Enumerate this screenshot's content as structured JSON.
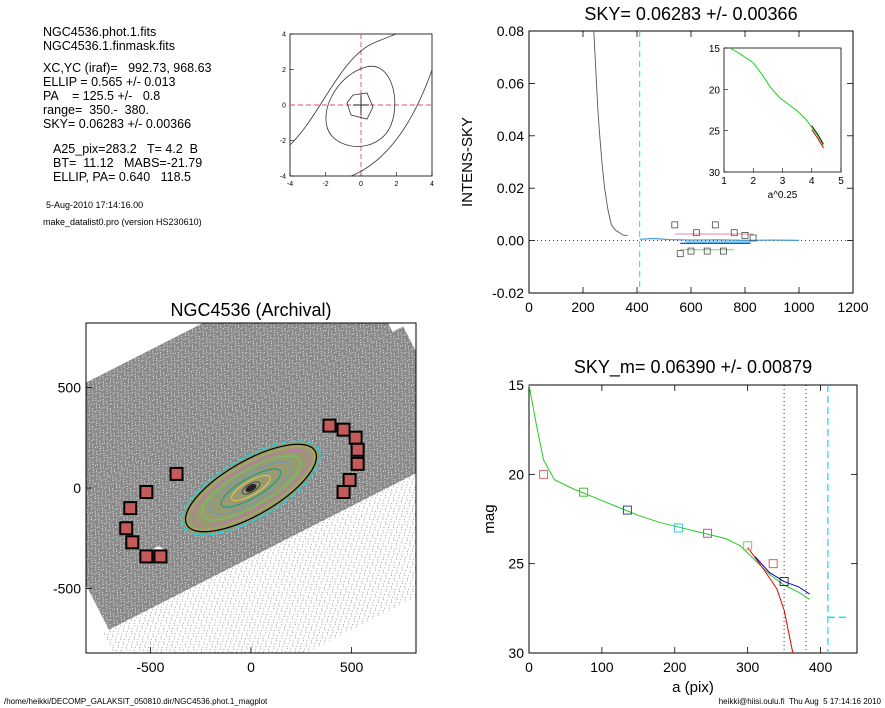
{
  "info": {
    "file_phot": "NGC4536.phot.1.fits",
    "file_mask": "NGC4536.1.finmask.fits",
    "xc_yc": "XC,YC (iraf)=   992.73, 968.63",
    "ellip": "ELLIP = 0.565 +/- 0.013",
    "pa": "PA    = 125.5 +/-   0.8",
    "range": "range=  350.-  380.",
    "sky": "SKY= 0.06283 +/- 0.00366",
    "a25": "A25_pix=283.2   T= 4.2  B",
    "bt": "BT=  11.12   MABS=-21.79",
    "ellip_pa": "ELLIP, PA= 0.640   118.5",
    "date": "5-Aug-2010 17:14:16.00",
    "program": "make_datalist0.pro (version HS230610)"
  },
  "footer": {
    "path": "/home/heikki/DECOMP_GALAKSIT_050810.dir/NGC4536.phot.1_magplot",
    "user_time": "heikki@hiisi.oulu.fi  Thu Aug  5 17:14:16 2010"
  },
  "colors": {
    "gray": "#555555",
    "cyan": "#00e0ff",
    "red": "#e00000",
    "green": "#22cc22",
    "blue": "#0000cc",
    "pink": "#ee8899",
    "magenta": "#cc44cc",
    "lightgreen": "#66dd66",
    "steel": "#4499cc",
    "darkred": "#990000"
  },
  "chart_data": [
    {
      "id": "contour",
      "type": "line",
      "title": "",
      "xlim": [
        -4,
        4
      ],
      "ylim": [
        -4,
        4
      ],
      "x_ticks": [
        "-4",
        "-2",
        "0",
        "2",
        "4"
      ],
      "y_ticks": [
        "-4",
        "-2",
        "0",
        "2",
        "4"
      ]
    },
    {
      "id": "intens_sky",
      "type": "line",
      "title": "SKY= 0.06283 +/- 0.00366",
      "ylabel": "INTENS-SKY",
      "xlim": [
        0,
        1200
      ],
      "ylim": [
        -0.02,
        0.08
      ],
      "x_ticks": [
        "0",
        "200",
        "400",
        "600",
        "800",
        "1000",
        "1200"
      ],
      "y_ticks": [
        "-0.02",
        "0.00",
        "0.02",
        "0.04",
        "0.06",
        "0.08"
      ],
      "series": [
        {
          "values": [
            [
              240,
              0.08
            ],
            [
              245,
              0.07
            ],
            [
              250,
              0.06
            ],
            [
              255,
              0.05
            ],
            [
              262,
              0.04
            ],
            [
              270,
              0.03
            ],
            [
              280,
              0.02
            ],
            [
              292,
              0.012
            ],
            [
              305,
              0.006
            ],
            [
              320,
              0.004
            ],
            [
              335,
              0.003
            ],
            [
              350,
              0.002
            ],
            [
              365,
              0.002
            ]
          ]
        },
        {
          "values": [
            [
              410,
              0.0005
            ],
            [
              460,
              0.0008
            ],
            [
              520,
              0.0004
            ],
            [
              600,
              0.0002
            ],
            [
              700,
              0.0003
            ],
            [
              800,
              0.0001
            ],
            [
              900,
              0.0002
            ],
            [
              1000,
              0.0001
            ]
          ]
        }
      ],
      "markers": [
        [
          540,
          0.006
        ],
        [
          560,
          -0.005
        ],
        [
          600,
          -0.004
        ],
        [
          620,
          0.003
        ],
        [
          660,
          -0.004
        ],
        [
          690,
          0.006
        ],
        [
          720,
          -0.004
        ],
        [
          760,
          0.003
        ],
        [
          800,
          0.002
        ],
        [
          830,
          0.001
        ]
      ],
      "vline": 410
    },
    {
      "id": "inset",
      "type": "line",
      "xlabel": "a^0.25",
      "xlim": [
        1,
        5
      ],
      "ylim": [
        15,
        30
      ],
      "x_ticks": [
        "1",
        "2",
        "3",
        "4",
        "5"
      ],
      "y_ticks": [
        "15",
        "20",
        "25",
        "30"
      ],
      "series": [
        {
          "values": [
            [
              1.2,
              15.0
            ],
            [
              1.5,
              15.6
            ],
            [
              2.0,
              16.8
            ],
            [
              2.3,
              18.2
            ],
            [
              2.6,
              19.8
            ],
            [
              2.9,
              21.0
            ],
            [
              3.2,
              21.8
            ],
            [
              3.5,
              22.6
            ],
            [
              3.8,
              23.6
            ],
            [
              4.0,
              24.6
            ],
            [
              4.2,
              25.6
            ],
            [
              4.4,
              26.8
            ]
          ]
        }
      ]
    },
    {
      "id": "image",
      "type": "scatter",
      "title": "NGC4536 (Archival)",
      "xlim": [
        -820,
        820
      ],
      "ylim": [
        -820,
        820
      ],
      "x_ticks": [
        "-500",
        "0",
        "500"
      ],
      "y_ticks": [
        "-500",
        "0",
        "500"
      ],
      "boxes": [
        [
          -600,
          -100
        ],
        [
          -620,
          -200
        ],
        [
          -590,
          -270
        ],
        [
          -520,
          -340
        ],
        [
          -450,
          -340
        ],
        [
          -520,
          -20
        ],
        [
          -370,
          70
        ],
        [
          390,
          310
        ],
        [
          460,
          290
        ],
        [
          520,
          250
        ],
        [
          530,
          190
        ],
        [
          530,
          120
        ],
        [
          490,
          40
        ],
        [
          460,
          -20
        ]
      ],
      "ellipse": {
        "a": 420,
        "b": 150,
        "pa_deg": 30
      }
    },
    {
      "id": "mag",
      "type": "line",
      "title": "SKY_m=  0.06390 +/- 0.00879",
      "xlabel": "a (pix)",
      "ylabel": "mag",
      "xlim": [
        0,
        450
      ],
      "ylim": [
        15,
        30
      ],
      "x_ticks": [
        "0",
        "100",
        "200",
        "300",
        "400"
      ],
      "y_ticks": [
        "15",
        "20",
        "25",
        "30"
      ],
      "series": [
        {
          "values": [
            [
              0,
              15.0
            ],
            [
              10,
              17.2
            ],
            [
              20,
              19.2
            ],
            [
              35,
              20.3
            ],
            [
              60,
              20.8
            ],
            [
              90,
              21.3
            ],
            [
              120,
              21.8
            ],
            [
              150,
              22.3
            ],
            [
              180,
              22.7
            ],
            [
              210,
              23.0
            ],
            [
              240,
              23.3
            ],
            [
              270,
              23.6
            ],
            [
              290,
              24.0
            ],
            [
              310,
              24.8
            ],
            [
              330,
              25.6
            ],
            [
              350,
              26.2
            ],
            [
              370,
              26.6
            ],
            [
              385,
              27.0
            ]
          ]
        },
        {
          "values": [
            [
              300,
              24.1
            ],
            [
              320,
              25.2
            ],
            [
              340,
              26.4
            ],
            [
              350,
              27.6
            ],
            [
              357,
              29.0
            ],
            [
              362,
              30.0
            ]
          ]
        },
        {
          "values": [
            [
              310,
              24.6
            ],
            [
              330,
              25.5
            ],
            [
              350,
              26.0
            ],
            [
              370,
              26.3
            ],
            [
              385,
              26.7
            ]
          ]
        }
      ],
      "markers": [
        [
          20,
          20.0
        ],
        [
          75,
          21.0
        ],
        [
          135,
          22.0
        ],
        [
          205,
          23.0
        ],
        [
          245,
          23.3
        ],
        [
          300,
          24.0
        ],
        [
          335,
          25.0
        ],
        [
          350,
          26.0
        ]
      ],
      "vlines_dotted": [
        350,
        380
      ],
      "vline_dashed": 410,
      "sky_segment": [
        [
          410,
          28.0
        ],
        [
          440,
          28.0
        ]
      ]
    }
  ]
}
